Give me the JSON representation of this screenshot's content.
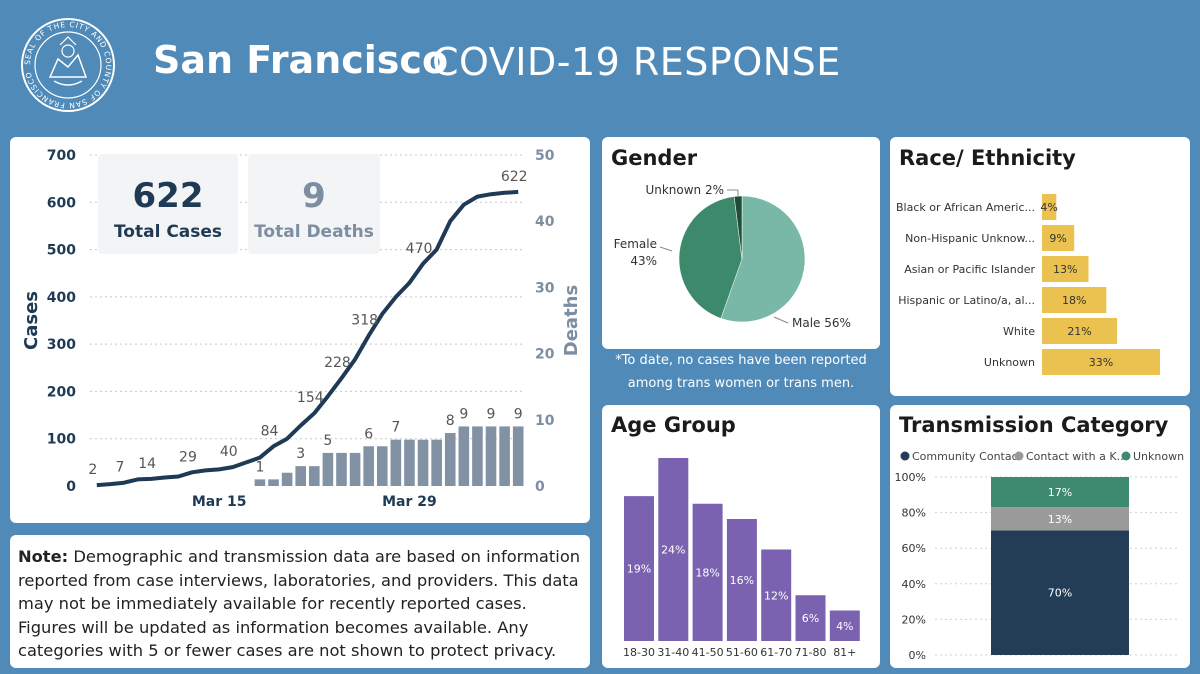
{
  "header": {
    "title_bold": "San Francisco",
    "title_rest": "COVID-19 RESPONSE",
    "seal_text": "SEAL OF THE CITY AND COUNTY OF SAN FRANCISCO"
  },
  "kpis": {
    "cases_value": "622",
    "cases_label": "Total Cases",
    "deaths_value": "9",
    "deaths_label": "Total Deaths"
  },
  "notes": {
    "note_bold": "Note:",
    "note_text": " Demographic and transmission data are based on information reported from case interviews, laboratories, and providers. This data may not be immediately available for recently reported cases. Figures will be updated as information becomes available. Any categories with 5 or fewer cases are not shown to protect privacy.",
    "gender_note": "*To date, no cases have been reported among trans women or trans men."
  },
  "colors": {
    "background": "#4f8ab8",
    "cases_line": "#1f3a54",
    "deaths_bars": "#8292a4",
    "gender_male": "#79b8a6",
    "gender_female": "#3c8a6b",
    "gender_unknown": "#1e4d3b",
    "race_bars": "#ebc14f",
    "age_bars": "#7a62b0",
    "community": "#243d57",
    "known_contact": "#9a9a9a",
    "unknown": "#3e8a70"
  },
  "chart_data": [
    {
      "type": "line",
      "title": "",
      "ylabel": "Cases",
      "y2label": "Deaths",
      "ylim": [
        0,
        700
      ],
      "y2lim": [
        0,
        50
      ],
      "yticks": [
        "0",
        "100",
        "200",
        "300",
        "400",
        "500",
        "600",
        "700"
      ],
      "y2ticks": [
        "0",
        "10",
        "20",
        "30",
        "40",
        "50"
      ],
      "xticks": [
        "Mar 15",
        "Mar 29"
      ],
      "x": [
        "Mar 6",
        "Mar 7",
        "Mar 8",
        "Mar 9",
        "Mar 10",
        "Mar 11",
        "Mar 12",
        "Mar 13",
        "Mar 14",
        "Mar 15",
        "Mar 16",
        "Mar 17",
        "Mar 18",
        "Mar 19",
        "Mar 20",
        "Mar 21",
        "Mar 22",
        "Mar 23",
        "Mar 24",
        "Mar 25",
        "Mar 26",
        "Mar 27",
        "Mar 28",
        "Mar 29",
        "Mar 30",
        "Mar 31",
        "Apr 1",
        "Apr 2",
        "Apr 3",
        "Apr 4",
        "Apr 5",
        "Apr 6"
      ],
      "series": [
        {
          "name": "Cases",
          "values": [
            2,
            4,
            7,
            14,
            15,
            18,
            20,
            29,
            33,
            35,
            40,
            50,
            60,
            84,
            100,
            128,
            154,
            190,
            228,
            268,
            318,
            364,
            400,
            430,
            470,
            500,
            560,
            595,
            612,
            617,
            620,
            622
          ],
          "labels": {
            "0": "2",
            "2": "7",
            "4": "14",
            "7": "29",
            "10": "40",
            "13": "84",
            "16": "154",
            "18": "228",
            "20": "318",
            "24": "470",
            "31": "622"
          }
        },
        {
          "name": "Deaths",
          "values": [
            null,
            null,
            null,
            null,
            null,
            null,
            null,
            null,
            null,
            null,
            null,
            null,
            1,
            1,
            2,
            3,
            3,
            5,
            5,
            5,
            6,
            6,
            7,
            7,
            7,
            7,
            8,
            9,
            9,
            9,
            9,
            9
          ],
          "labels": {
            "12": "1",
            "15": "3",
            "17": "5",
            "20": "6",
            "22": "7",
            "26": "8",
            "27": "9",
            "29": "9",
            "31": "9"
          }
        }
      ]
    },
    {
      "type": "pie",
      "title": "Gender",
      "slices": [
        {
          "label": "Male 56%",
          "value": 56
        },
        {
          "label": "Female 43%",
          "value": 43
        },
        {
          "label": "Unknown 2%",
          "value": 2
        }
      ]
    },
    {
      "type": "bar",
      "title": "Race/ Ethnicity",
      "orientation": "horizontal",
      "categories": [
        "Black or African Americ...",
        "Non-Hispanic Unknow...",
        "Asian or Pacific Islander",
        "Hispanic or Latino/a, al...",
        "White",
        "Unknown"
      ],
      "values": [
        4,
        9,
        13,
        18,
        21,
        33
      ],
      "data_labels": [
        "4%",
        "9%",
        "13%",
        "18%",
        "21%",
        "33%"
      ]
    },
    {
      "type": "bar",
      "title": "Age Group",
      "categories": [
        "18-30",
        "31-40",
        "41-50",
        "51-60",
        "61-70",
        "71-80",
        "81+"
      ],
      "values": [
        19,
        24,
        18,
        16,
        12,
        6,
        4
      ],
      "data_labels": [
        "19%",
        "24%",
        "18%",
        "16%",
        "12%",
        "6%",
        "4%"
      ]
    },
    {
      "type": "bar",
      "title": "Transmission Category",
      "stacked": true,
      "legend": [
        "Community Contact",
        "Contact with a K...",
        "Unknown"
      ],
      "legend_position": "top",
      "yticks": [
        "0%",
        "20%",
        "40%",
        "60%",
        "80%",
        "100%"
      ],
      "ylim": [
        0,
        100
      ],
      "series": [
        {
          "name": "Community Contact",
          "value": 70,
          "label": "70%"
        },
        {
          "name": "Contact with a K...",
          "value": 13,
          "label": "13%"
        },
        {
          "name": "Unknown",
          "value": 17,
          "label": "17%"
        }
      ]
    }
  ]
}
